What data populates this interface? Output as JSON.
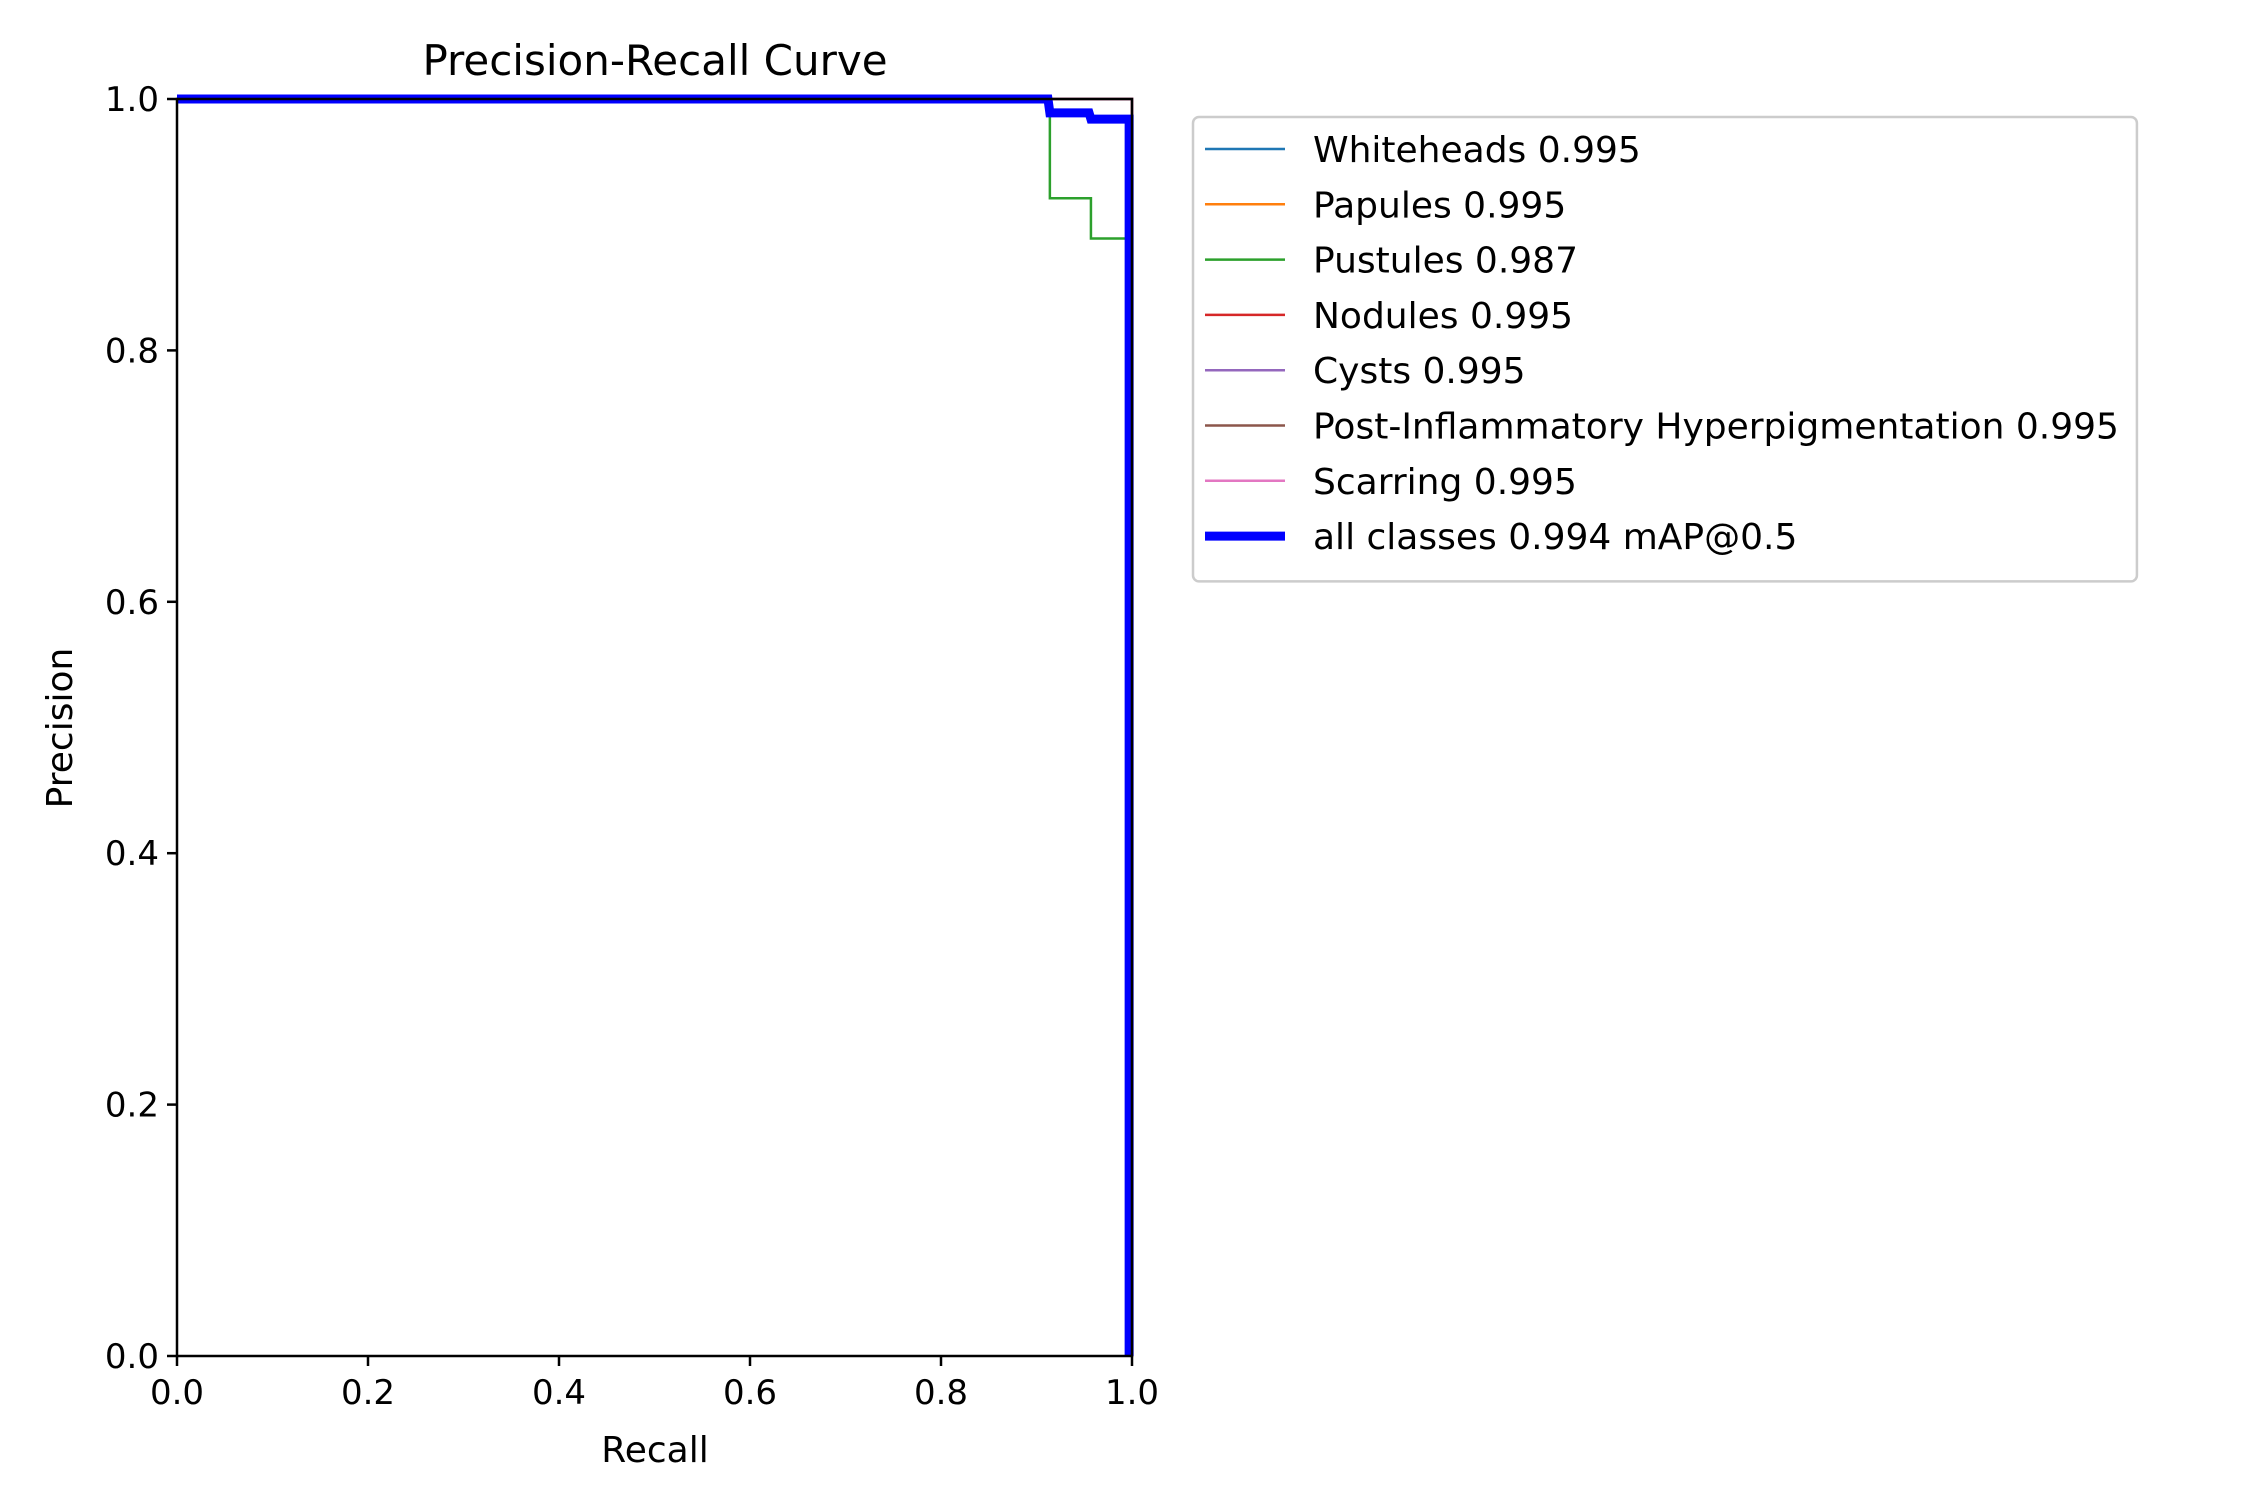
{
  "chart_data": {
    "type": "line",
    "title": "Precision-Recall Curve",
    "xlabel": "Recall",
    "ylabel": "Precision",
    "xlim": [
      0.0,
      1.0
    ],
    "ylim": [
      0.0,
      1.0
    ],
    "xticks": [
      "0.0",
      "0.2",
      "0.4",
      "0.6",
      "0.8",
      "1.0"
    ],
    "yticks": [
      "0.0",
      "0.2",
      "0.4",
      "0.6",
      "0.8",
      "1.0"
    ],
    "grid": false,
    "legend_position": "outside-upper-right",
    "series": [
      {
        "name": "Whiteheads 0.995",
        "color": "#1f77b4",
        "width": "thin",
        "points": [
          [
            0,
            1.0
          ],
          [
            1.0,
            1.0
          ],
          [
            1.0,
            0.0
          ]
        ]
      },
      {
        "name": "Papules 0.995",
        "color": "#ff7f0e",
        "width": "thin",
        "points": [
          [
            0,
            1.0
          ],
          [
            1.0,
            1.0
          ],
          [
            1.0,
            0.0
          ]
        ]
      },
      {
        "name": "Pustules 0.987",
        "color": "#2ca02c",
        "width": "thin",
        "points": [
          [
            0,
            1.0
          ],
          [
            0.914,
            1.0
          ],
          [
            0.914,
            0.921
          ],
          [
            0.957,
            0.921
          ],
          [
            0.957,
            0.889
          ],
          [
            0.997,
            0.889
          ],
          [
            0.997,
            0.0
          ]
        ]
      },
      {
        "name": "Nodules 0.995",
        "color": "#d62728",
        "width": "thin",
        "points": [
          [
            0,
            1.0
          ],
          [
            1.0,
            1.0
          ],
          [
            1.0,
            0.0
          ]
        ]
      },
      {
        "name": "Cysts 0.995",
        "color": "#9467bd",
        "width": "thin",
        "points": [
          [
            0,
            1.0
          ],
          [
            1.0,
            1.0
          ],
          [
            1.0,
            0.0
          ]
        ]
      },
      {
        "name": "Post-Inflammatory Hyperpigmentation 0.995",
        "color": "#8c564b",
        "width": "thin",
        "points": [
          [
            0,
            1.0
          ],
          [
            1.0,
            1.0
          ],
          [
            1.0,
            0.0
          ]
        ]
      },
      {
        "name": "Scarring 0.995",
        "color": "#e377c2",
        "width": "thin",
        "points": [
          [
            0,
            1.0
          ],
          [
            1.0,
            1.0
          ],
          [
            1.0,
            0.0
          ]
        ]
      },
      {
        "name": "all classes 0.994 mAP@0.5",
        "color": "#0000ff",
        "width": "thick",
        "points": [
          [
            0,
            1.0
          ],
          [
            0.912,
            1.0
          ],
          [
            0.914,
            0.989
          ],
          [
            0.955,
            0.989
          ],
          [
            0.957,
            0.984
          ],
          [
            0.997,
            0.984
          ],
          [
            0.997,
            0.0
          ]
        ]
      }
    ]
  }
}
